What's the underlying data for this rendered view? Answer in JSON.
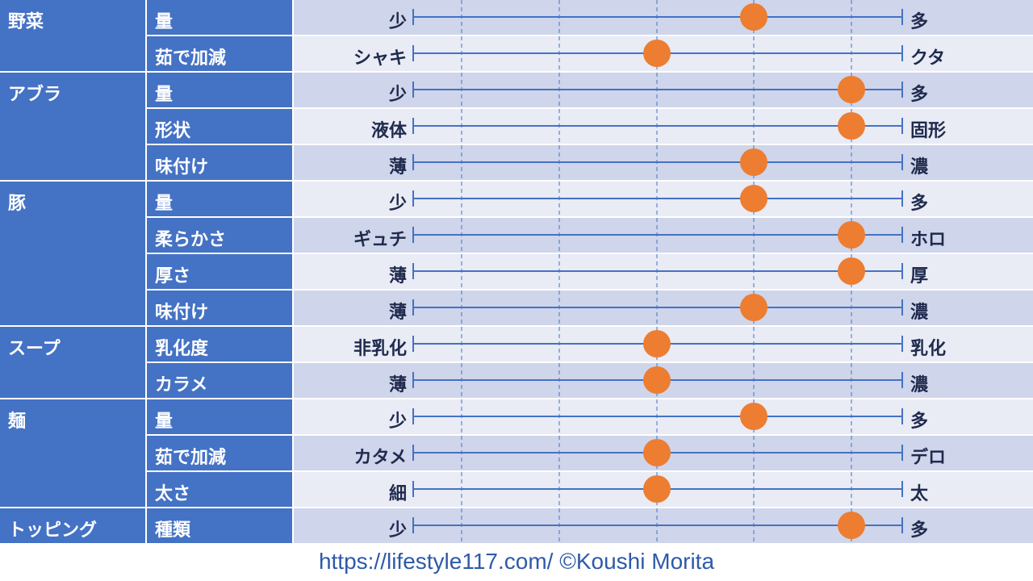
{
  "chart_data": {
    "type": "scatter",
    "scale_steps": 5,
    "colors": {
      "category_bg": "#4472c4",
      "band_odd": "#cfd5ea",
      "band_even": "#e9ebf5",
      "line": "#4472c4",
      "marker": "#ed7d31",
      "text": "#1f2a4d"
    },
    "groups": [
      {
        "category": "野菜",
        "rows": [
          {
            "attribute": "量",
            "low": "少",
            "high": "多",
            "value": 4
          },
          {
            "attribute": "茹で加減",
            "low": "シャキ",
            "high": "クタ",
            "value": 3
          }
        ]
      },
      {
        "category": "アブラ",
        "rows": [
          {
            "attribute": "量",
            "low": "少",
            "high": "多",
            "value": 5
          },
          {
            "attribute": "形状",
            "low": "液体",
            "high": "固形",
            "value": 5
          },
          {
            "attribute": "味付け",
            "low": "薄",
            "high": "濃",
            "value": 4
          }
        ]
      },
      {
        "category": "豚",
        "rows": [
          {
            "attribute": "量",
            "low": "少",
            "high": "多",
            "value": 4
          },
          {
            "attribute": "柔らかさ",
            "low": "ギュチ",
            "high": "ホロ",
            "value": 5
          },
          {
            "attribute": "厚さ",
            "low": "薄",
            "high": "厚",
            "value": 5
          },
          {
            "attribute": "味付け",
            "low": "薄",
            "high": "濃",
            "value": 4
          }
        ]
      },
      {
        "category": "スープ",
        "rows": [
          {
            "attribute": "乳化度",
            "low": "非乳化",
            "high": "乳化",
            "value": 3
          },
          {
            "attribute": "カラメ",
            "low": "薄",
            "high": "濃",
            "value": 3
          }
        ]
      },
      {
        "category": "麺",
        "rows": [
          {
            "attribute": "量",
            "low": "少",
            "high": "多",
            "value": 4
          },
          {
            "attribute": "茹で加減",
            "low": "カタメ",
            "high": "デロ",
            "value": 3
          },
          {
            "attribute": "太さ",
            "low": "細",
            "high": "太",
            "value": 3
          }
        ]
      },
      {
        "category": "トッピング",
        "rows": [
          {
            "attribute": "種類",
            "low": "少",
            "high": "多",
            "value": 5
          }
        ]
      }
    ]
  },
  "footer": {
    "text": "https://lifestyle117.com/  ©Koushi Morita"
  }
}
